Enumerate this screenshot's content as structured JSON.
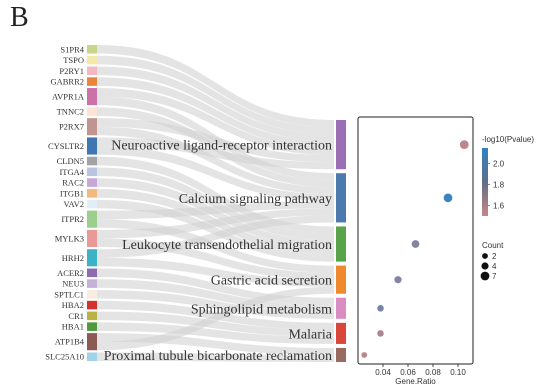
{
  "panel_label": "B",
  "chart_data": {
    "type": "sankey-dotplot",
    "genes": [
      {
        "name": "S1PR4",
        "color": "#c9d68a",
        "links": [
          0
        ]
      },
      {
        "name": "TSPO",
        "color": "#f6e8a8",
        "links": [
          0
        ]
      },
      {
        "name": "P2RY1",
        "color": "#f2b8c6",
        "links": [
          0
        ]
      },
      {
        "name": "GABRR2",
        "color": "#e8873c",
        "links": [
          0
        ]
      },
      {
        "name": "AVPR1A",
        "color": "#cc72a8",
        "links": [
          0,
          1
        ]
      },
      {
        "name": "TNNC2",
        "color": "#fde3d6",
        "links": [
          1
        ]
      },
      {
        "name": "P2RX7",
        "color": "#c09490",
        "links": [
          0,
          1
        ]
      },
      {
        "name": "CYSLTR2",
        "color": "#3f77b2",
        "links": [
          0,
          1
        ]
      },
      {
        "name": "CLDN5",
        "color": "#a3a3a3",
        "links": [
          2
        ]
      },
      {
        "name": "ITGA4",
        "color": "#b9c4e2",
        "links": [
          2
        ]
      },
      {
        "name": "RAC2",
        "color": "#c6a7d6",
        "links": [
          2
        ]
      },
      {
        "name": "ITGB1",
        "color": "#f1ba7c",
        "links": [
          2
        ]
      },
      {
        "name": "VAV2",
        "color": "#e1eef6",
        "links": [
          2
        ]
      },
      {
        "name": "ITPR2",
        "color": "#9bd08c",
        "links": [
          1,
          3
        ]
      },
      {
        "name": "MYLK3",
        "color": "#e99a97",
        "links": [
          1,
          3
        ]
      },
      {
        "name": "HRH2",
        "color": "#3bb3c4",
        "links": [
          1,
          3
        ]
      },
      {
        "name": "ACER2",
        "color": "#8c6bb1",
        "links": [
          4
        ]
      },
      {
        "name": "NEU3",
        "color": "#c4b0d8",
        "links": [
          4
        ]
      },
      {
        "name": "SPTLC1",
        "color": "#f7eee2",
        "links": [
          4
        ]
      },
      {
        "name": "HBA2",
        "color": "#d4322e",
        "links": [
          5
        ]
      },
      {
        "name": "CR1",
        "color": "#b8b342",
        "links": [
          5
        ]
      },
      {
        "name": "HBA1",
        "color": "#4e9a3c",
        "links": [
          5
        ]
      },
      {
        "name": "ATP1B4",
        "color": "#8a5a53",
        "links": [
          6,
          3
        ]
      },
      {
        "name": "SLC25A10",
        "color": "#9fd3e8",
        "links": [
          6
        ]
      }
    ],
    "pathways": [
      {
        "name": "Neuroactive ligand-receptor interaction",
        "color": "#9b6fb6",
        "gene_ratio": 0.105,
        "neg_log10_p": 1.55,
        "count": 7
      },
      {
        "name": "Calcium signaling pathway",
        "color": "#4c79ae",
        "gene_ratio": 0.092,
        "neg_log10_p": 2.1,
        "count": 7
      },
      {
        "name": "Leukocyte transendothelial migration",
        "color": "#59a34b",
        "gene_ratio": 0.066,
        "neg_log10_p": 1.8,
        "count": 5
      },
      {
        "name": "Gastric acid secretion",
        "color": "#f0892e",
        "gene_ratio": 0.052,
        "neg_log10_p": 1.8,
        "count": 4
      },
      {
        "name": "Sphingolipid metabolism",
        "color": "#d98dc2",
        "gene_ratio": 0.038,
        "neg_log10_p": 1.85,
        "count": 3
      },
      {
        "name": "Malaria",
        "color": "#d8473a",
        "gene_ratio": 0.038,
        "neg_log10_p": 1.6,
        "count": 3
      },
      {
        "name": "Proximal tubule bicarbonate reclamation",
        "color": "#9a6a62",
        "gene_ratio": 0.025,
        "neg_log10_p": 1.55,
        "count": 2
      }
    ],
    "xlabel": "Gene.Ratio",
    "x_ticks": [
      0.04,
      0.06,
      0.08,
      0.1
    ],
    "x_tick_labels": [
      "0.04",
      "0.06",
      "0.08",
      "0.10"
    ],
    "xlim": [
      0.02,
      0.112
    ],
    "color_legend": {
      "title": "-log10(Pvalue)",
      "ticks": [
        1.6,
        1.8,
        2.0
      ],
      "tick_labels": [
        "1.6",
        "1.8",
        "2.0"
      ],
      "range": [
        1.5,
        2.15
      ],
      "low_color": "#c98587",
      "high_color": "#2f83c3"
    },
    "size_legend": {
      "title": "Count",
      "values": [
        2,
        4,
        7
      ],
      "labels": [
        "2",
        "4",
        "7"
      ]
    }
  }
}
